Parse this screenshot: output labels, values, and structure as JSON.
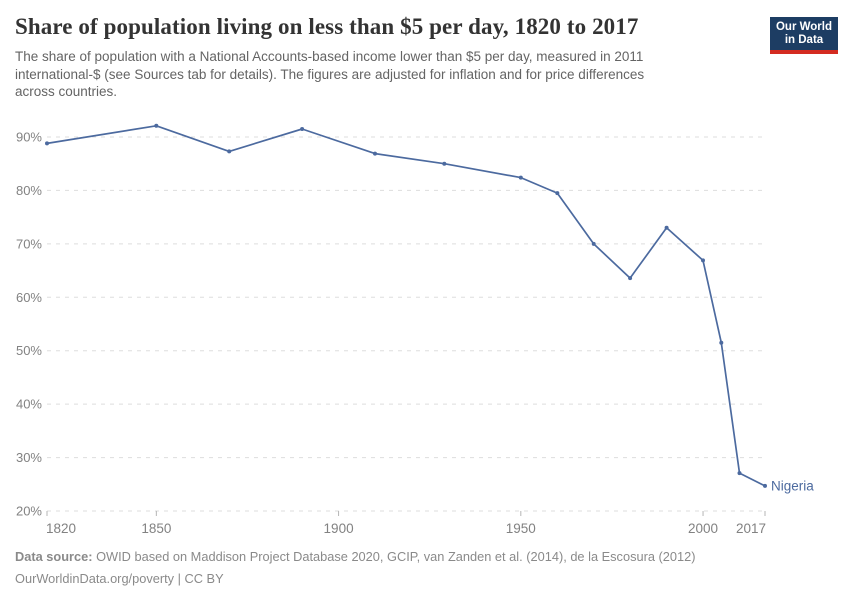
{
  "header": {
    "title": "Share of population living on less than $5 per day, 1820 to 2017",
    "subtitle_lines": [
      "The share of population with a National Accounts-based income lower than $5 per day, measured in 2011",
      "international-$ (see Sources tab for details). The figures are adjusted for inflation and for price differences",
      "across countries."
    ],
    "logo": {
      "line1": "Our World",
      "line2": "in Data",
      "bg_color": "#1d3d63",
      "accent_color": "#d42b21"
    }
  },
  "chart_data": {
    "type": "line",
    "title": "Share of population living on less than $5 per day, 1820 to 2017",
    "xlabel": "",
    "ylabel": "",
    "xlim": [
      1820,
      2017
    ],
    "ylim": [
      20,
      90
    ],
    "grid": "horizontal-dashed",
    "gridline_color": "#dddddd",
    "axis_label_color": "#828282",
    "y_tick_suffix": "%",
    "y_ticks": [
      20,
      30,
      40,
      50,
      60,
      70,
      80,
      90
    ],
    "x_ticks": [
      1820,
      1850,
      1900,
      1950,
      2000,
      2017
    ],
    "legend": "end-label",
    "series": [
      {
        "name": "Nigeria",
        "color": "#4c6a9f",
        "x": [
          1820,
          1850,
          1870,
          1890,
          1910,
          1929,
          1950,
          1960,
          1970,
          1980,
          1990,
          2000,
          2005,
          2010,
          2017
        ],
        "values": [
          88.8,
          92.1,
          87.3,
          91.5,
          86.9,
          85.0,
          82.4,
          79.5,
          70.0,
          63.6,
          73.0,
          66.9,
          51.5,
          27.1,
          24.7
        ]
      }
    ]
  },
  "footer": {
    "data_source_label": "Data source:",
    "data_source_text": " OWID based on Maddison Project Database 2020, GCIP, van Zanden et al. (2014), de la Escosura (2012)",
    "attribution": "OurWorldinData.org/poverty | CC BY"
  }
}
